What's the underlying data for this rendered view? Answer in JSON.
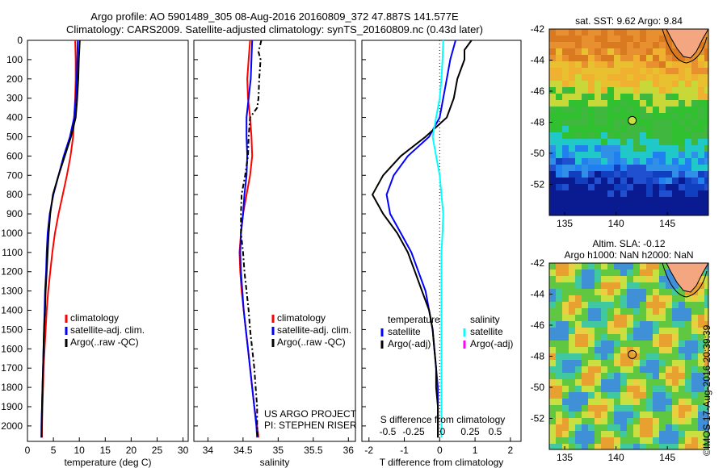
{
  "header": {
    "title_line1": "Argo profile: AO 5901489_305 08-Aug-2016 20160809_372 47.887S 141.577E",
    "title_line2": "Climatology: CARS2009. Satellite-adjusted climatology: synTS_20160809.nc (0.43d later)"
  },
  "colors": {
    "climatology": "#ff0000",
    "satellite": "#0000ff",
    "argo": "#000000",
    "salinity_satellite": "#00ffff",
    "salinity_argo": "#ff00ff"
  },
  "chart_data": [
    {
      "type": "line",
      "panel": "temperature",
      "xlabel": "temperature (deg C)",
      "ylabel": "",
      "xlim": [
        0,
        31
      ],
      "ylim": [
        2080,
        0
      ],
      "xticks": [
        "0",
        "5",
        "10",
        "15",
        "20",
        "25",
        "30"
      ],
      "yticks": [
        "0",
        "100",
        "200",
        "300",
        "400",
        "500",
        "600",
        "700",
        "800",
        "900",
        "1000",
        "1100",
        "1200",
        "1300",
        "1400",
        "1500",
        "1600",
        "1700",
        "1800",
        "1900",
        "2000"
      ],
      "series": [
        {
          "name": "climatology",
          "color": "#ff0000",
          "dash": "",
          "points": [
            [
              9.2,
              0
            ],
            [
              9.3,
              100
            ],
            [
              9.3,
              200
            ],
            [
              9.2,
              300
            ],
            [
              9.0,
              400
            ],
            [
              8.8,
              500
            ],
            [
              8.3,
              600
            ],
            [
              7.6,
              700
            ],
            [
              6.8,
              800
            ],
            [
              6.0,
              900
            ],
            [
              5.3,
              1000
            ],
            [
              4.8,
              1100
            ],
            [
              4.4,
              1200
            ],
            [
              4.0,
              1300
            ],
            [
              3.7,
              1400
            ],
            [
              3.5,
              1500
            ],
            [
              3.3,
              1600
            ],
            [
              3.1,
              1700
            ],
            [
              3.0,
              1800
            ],
            [
              2.9,
              1900
            ],
            [
              2.8,
              2000
            ],
            [
              2.8,
              2060
            ]
          ]
        },
        {
          "name": "satellite-adj. clim.",
          "color": "#0000ff",
          "dash": "",
          "points": [
            [
              9.7,
              0
            ],
            [
              9.6,
              100
            ],
            [
              9.5,
              200
            ],
            [
              9.3,
              300
            ],
            [
              9.0,
              400
            ],
            [
              8.2,
              500
            ],
            [
              7.0,
              600
            ],
            [
              6.0,
              700
            ],
            [
              5.0,
              800
            ],
            [
              4.3,
              900
            ],
            [
              3.9,
              1000
            ],
            [
              3.7,
              1100
            ],
            [
              3.6,
              1200
            ],
            [
              3.4,
              1300
            ],
            [
              3.3,
              1400
            ],
            [
              3.2,
              1500
            ],
            [
              3.1,
              1600
            ],
            [
              3.0,
              1700
            ],
            [
              2.9,
              1800
            ],
            [
              2.8,
              1900
            ],
            [
              2.7,
              2000
            ],
            [
              2.7,
              2060
            ]
          ]
        },
        {
          "name": "Argo(..raw -QC)",
          "color": "#000000",
          "dash": "",
          "points": [
            [
              10.1,
              0
            ],
            [
              10.0,
              50
            ],
            [
              9.9,
              100
            ],
            [
              9.8,
              200
            ],
            [
              9.6,
              300
            ],
            [
              9.3,
              400
            ],
            [
              8.4,
              500
            ],
            [
              7.2,
              600
            ],
            [
              6.0,
              700
            ],
            [
              4.9,
              800
            ],
            [
              4.4,
              900
            ],
            [
              4.1,
              1000
            ],
            [
              3.9,
              1100
            ],
            [
              3.7,
              1200
            ],
            [
              3.5,
              1300
            ],
            [
              3.4,
              1400
            ],
            [
              3.2,
              1500
            ],
            [
              3.1,
              1600
            ],
            [
              3.0,
              1700
            ],
            [
              2.9,
              1800
            ],
            [
              2.8,
              1900
            ],
            [
              2.75,
              2000
            ],
            [
              2.7,
              2060
            ]
          ]
        }
      ],
      "legend": [
        {
          "label": "climatology",
          "color": "#ff0000"
        },
        {
          "label": "satellite-adj. clim.",
          "color": "#0000ff"
        },
        {
          "label": "Argo(..raw -QC)",
          "color": "#000000"
        }
      ]
    },
    {
      "type": "line",
      "panel": "salinity",
      "xlabel": "salinity",
      "ylabel": "",
      "xlim": [
        33.8,
        36.1
      ],
      "ylim": [
        2080,
        0
      ],
      "xticks": [
        "34",
        "34.5",
        "35",
        "35.5",
        "36"
      ],
      "series": [
        {
          "name": "climatology",
          "color": "#ff0000",
          "dash": "",
          "points": [
            [
              34.6,
              0
            ],
            [
              34.58,
              100
            ],
            [
              34.56,
              200
            ],
            [
              34.57,
              300
            ],
            [
              34.6,
              400
            ],
            [
              34.62,
              500
            ],
            [
              34.63,
              600
            ],
            [
              34.6,
              700
            ],
            [
              34.55,
              800
            ],
            [
              34.5,
              900
            ],
            [
              34.47,
              1000
            ],
            [
              34.45,
              1100
            ],
            [
              34.46,
              1200
            ],
            [
              34.48,
              1300
            ],
            [
              34.51,
              1400
            ],
            [
              34.54,
              1500
            ],
            [
              34.57,
              1600
            ],
            [
              34.6,
              1700
            ],
            [
              34.63,
              1800
            ],
            [
              34.66,
              1900
            ],
            [
              34.7,
              2000
            ],
            [
              34.72,
              2060
            ]
          ]
        },
        {
          "name": "satellite-adj. clim.",
          "color": "#0000ff",
          "dash": "",
          "points": [
            [
              34.63,
              0
            ],
            [
              34.62,
              100
            ],
            [
              34.61,
              200
            ],
            [
              34.58,
              300
            ],
            [
              34.55,
              400
            ],
            [
              34.55,
              500
            ],
            [
              34.56,
              600
            ],
            [
              34.55,
              700
            ],
            [
              34.52,
              800
            ],
            [
              34.5,
              900
            ],
            [
              34.47,
              1000
            ],
            [
              34.46,
              1100
            ],
            [
              34.47,
              1200
            ],
            [
              34.49,
              1300
            ],
            [
              34.51,
              1400
            ],
            [
              34.54,
              1500
            ],
            [
              34.57,
              1600
            ],
            [
              34.6,
              1700
            ],
            [
              34.63,
              1800
            ],
            [
              34.66,
              1900
            ],
            [
              34.69,
              2000
            ],
            [
              34.7,
              2060
            ]
          ]
        },
        {
          "name": "Argo(..raw -QC)",
          "color": "#000000",
          "dash": "6,3,2,3",
          "points": [
            [
              34.76,
              0
            ],
            [
              34.72,
              60
            ],
            [
              34.75,
              100
            ],
            [
              34.73,
              200
            ],
            [
              34.72,
              300
            ],
            [
              34.7,
              350
            ],
            [
              34.6,
              400
            ],
            [
              34.58,
              500
            ],
            [
              34.57,
              600
            ],
            [
              34.53,
              700
            ],
            [
              34.48,
              800
            ],
            [
              34.47,
              900
            ],
            [
              34.47,
              1000
            ],
            [
              34.5,
              1100
            ],
            [
              34.52,
              1200
            ],
            [
              34.55,
              1300
            ],
            [
              34.58,
              1400
            ],
            [
              34.6,
              1500
            ],
            [
              34.63,
              1600
            ],
            [
              34.66,
              1700
            ],
            [
              34.68,
              1800
            ],
            [
              34.7,
              1900
            ],
            [
              34.7,
              2000
            ],
            [
              34.71,
              2060
            ]
          ]
        }
      ],
      "legend": [
        {
          "label": "climatology",
          "color": "#ff0000"
        },
        {
          "label": "satellite-adj. clim.",
          "color": "#0000ff"
        },
        {
          "label": "Argo(..raw -QC)",
          "color": "#000000"
        }
      ],
      "annotations": [
        "US ARGO PROJECT",
        "PI: STEPHEN RISER"
      ]
    },
    {
      "type": "line",
      "panel": "difference",
      "xlabel": "T difference from climatology",
      "xlabel_top": "S difference from climatology",
      "xlim": [
        -2.2,
        2.3
      ],
      "ylim": [
        2080,
        0
      ],
      "xticks": [
        "-2",
        "-1",
        "0",
        "1",
        "2"
      ],
      "s_ticks": [
        "-0.5",
        "-0.25",
        "0",
        "0.25",
        "0.5"
      ],
      "series": [
        {
          "name": "temperature satellite",
          "color": "#0000ff",
          "dash": "",
          "points": [
            [
              0.45,
              0
            ],
            [
              0.3,
              100
            ],
            [
              0.2,
              200
            ],
            [
              0.1,
              300
            ],
            [
              0.0,
              400
            ],
            [
              -0.3,
              500
            ],
            [
              -0.9,
              600
            ],
            [
              -1.3,
              700
            ],
            [
              -1.5,
              800
            ],
            [
              -1.4,
              900
            ],
            [
              -1.1,
              1000
            ],
            [
              -0.8,
              1100
            ],
            [
              -0.6,
              1200
            ],
            [
              -0.4,
              1300
            ],
            [
              -0.3,
              1400
            ],
            [
              -0.2,
              1500
            ],
            [
              -0.15,
              1600
            ],
            [
              -0.1,
              1700
            ],
            [
              -0.05,
              1800
            ],
            [
              -0.05,
              1900
            ],
            [
              -0.05,
              2000
            ],
            [
              -0.05,
              2060
            ]
          ]
        },
        {
          "name": "temperature Argo(-adj)",
          "color": "#000000",
          "dash": "",
          "points": [
            [
              0.9,
              0
            ],
            [
              0.7,
              50
            ],
            [
              0.7,
              100
            ],
            [
              0.5,
              200
            ],
            [
              0.4,
              300
            ],
            [
              0.2,
              400
            ],
            [
              -0.4,
              500
            ],
            [
              -1.1,
              600
            ],
            [
              -1.6,
              700
            ],
            [
              -1.9,
              800
            ],
            [
              -1.6,
              900
            ],
            [
              -1.2,
              1000
            ],
            [
              -0.9,
              1100
            ],
            [
              -0.7,
              1200
            ],
            [
              -0.5,
              1300
            ],
            [
              -0.3,
              1400
            ],
            [
              -0.2,
              1500
            ],
            [
              -0.15,
              1600
            ],
            [
              -0.1,
              1700
            ],
            [
              -0.1,
              1800
            ],
            [
              -0.05,
              1900
            ],
            [
              -0.05,
              2000
            ],
            [
              -0.05,
              2060
            ]
          ]
        },
        {
          "name": "salinity satellite",
          "color": "#00ffff",
          "dash": "",
          "points": [
            [
              0.1,
              0
            ],
            [
              0.08,
              100
            ],
            [
              0.05,
              200
            ],
            [
              0.0,
              300
            ],
            [
              -0.1,
              400
            ],
            [
              -0.2,
              500
            ],
            [
              -0.1,
              600
            ],
            [
              0.0,
              700
            ],
            [
              0.05,
              800
            ],
            [
              0.1,
              900
            ],
            [
              0.08,
              1000
            ],
            [
              0.05,
              1100
            ],
            [
              0.05,
              1200
            ],
            [
              0.05,
              1300
            ],
            [
              0.05,
              1400
            ],
            [
              0.05,
              1500
            ],
            [
              0.05,
              1600
            ],
            [
              0.05,
              1700
            ],
            [
              0.05,
              1800
            ],
            [
              0.05,
              1900
            ],
            [
              0.05,
              2000
            ],
            [
              0.05,
              2060
            ]
          ]
        }
      ],
      "legend_temperature": [
        {
          "label": "temperature",
          "color": ""
        },
        {
          "label": "satellite",
          "color": "#0000ff"
        },
        {
          "label": "Argo(-adj)",
          "color": "#000000"
        }
      ],
      "legend_salinity": [
        {
          "label": "salinity",
          "color": ""
        },
        {
          "label": "satellite",
          "color": "#00ffff"
        },
        {
          "label": "Argo(-adj)",
          "color": "#ff00ff"
        }
      ]
    },
    {
      "type": "heatmap",
      "panel": "sst-map",
      "title": "sat. SST: 9.62 Argo: 9.84",
      "xticks": [
        "135",
        "140",
        "145"
      ],
      "yticks": [
        "-42",
        "-44",
        "-46",
        "-48",
        "-50",
        "-52"
      ],
      "xlim": [
        133.5,
        149
      ],
      "ylim": [
        -54,
        -42
      ],
      "argo_position": [
        141.577,
        -47.887
      ]
    },
    {
      "type": "heatmap",
      "panel": "sla-map",
      "title": "Altim. SLA: -0.12",
      "subtitle": "Argo h1000: NaN h2000: NaN",
      "xticks": [
        "135",
        "140",
        "145"
      ],
      "yticks": [
        "-42",
        "-44",
        "-46",
        "-48",
        "-50",
        "-52"
      ],
      "xlim": [
        133.5,
        149
      ],
      "ylim": [
        -54,
        -42
      ],
      "argo_position": [
        141.577,
        -47.887
      ]
    }
  ],
  "stamp": "©IMOS 17-Aug-2016 20:39:39"
}
